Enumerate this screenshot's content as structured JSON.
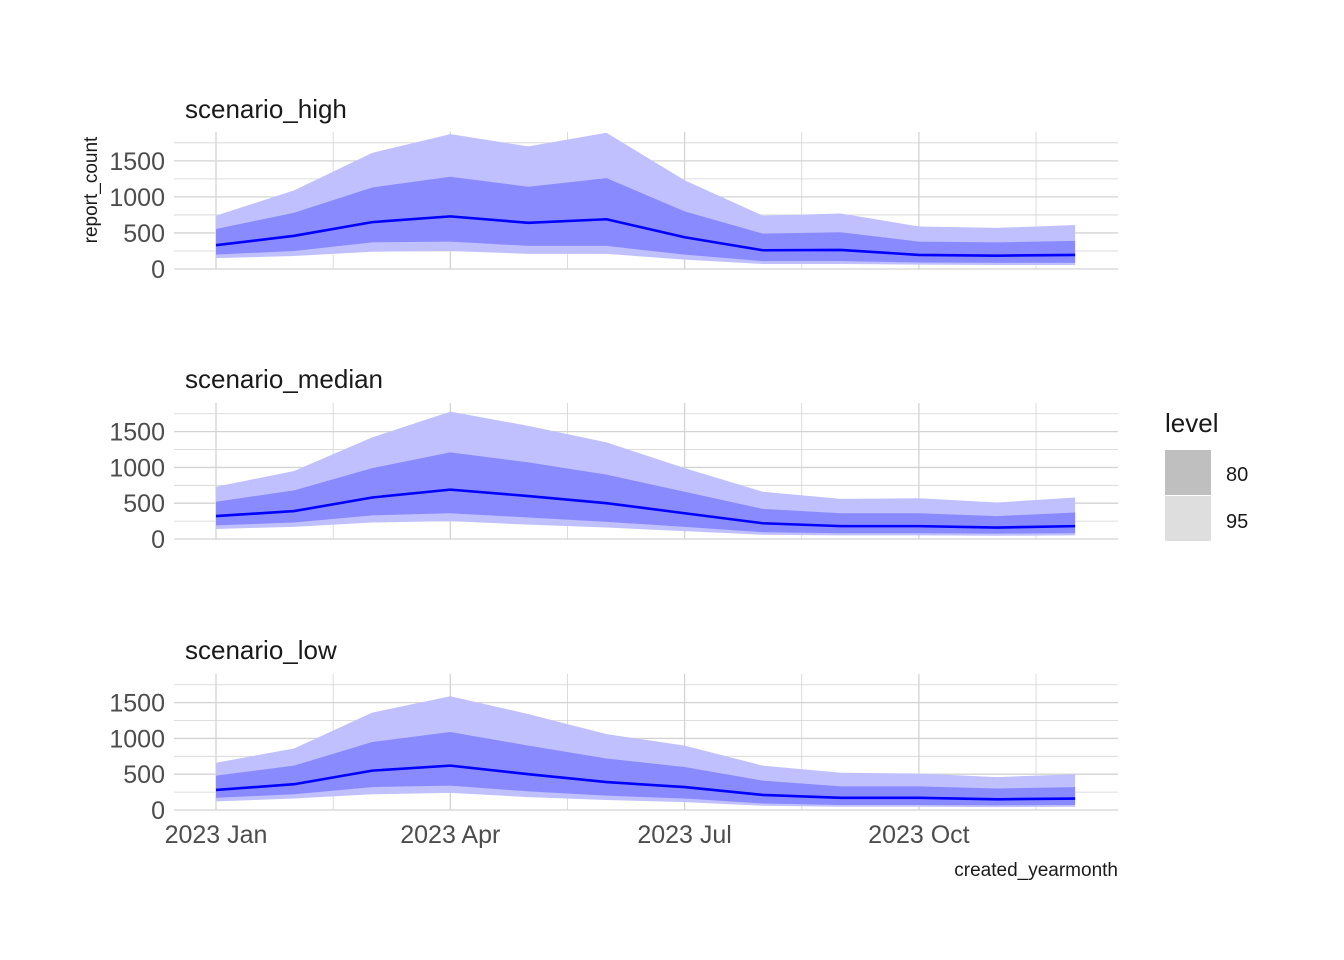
{
  "chart_data": {
    "type": "area",
    "xlabel": "created_yearmonth",
    "ylabel": "report_count",
    "x": [
      "2023-01",
      "2023-02",
      "2023-03",
      "2023-04",
      "2023-05",
      "2023-06",
      "2023-07",
      "2023-08",
      "2023-09",
      "2023-10",
      "2023-11",
      "2023-12"
    ],
    "x_ticks": [
      "2023 Jan",
      "2023 Apr",
      "2023 Jul",
      "2023 Oct"
    ],
    "x_tick_months": [
      "2023-01",
      "2023-04",
      "2023-07",
      "2023-10"
    ],
    "y_ticks": [
      0,
      500,
      1000,
      1500
    ],
    "ylim": [
      0,
      1900
    ],
    "grid": true,
    "colors": {
      "line": "#0000ff",
      "band80": "#8a8aff",
      "band95": "#c0c0ff",
      "grid": "#d3d3d3",
      "legend80": "#bfbfbf",
      "legend95": "#dedede"
    },
    "legend": {
      "title": "level",
      "position": "right",
      "items": [
        {
          "label": "80",
          "color": "#bfbfbf"
        },
        {
          "label": "95",
          "color": "#dedede"
        }
      ]
    },
    "facets": [
      {
        "title": "scenario_high",
        "mean": [
          330,
          460,
          650,
          730,
          640,
          690,
          440,
          260,
          265,
          195,
          185,
          195
        ],
        "lo80": [
          200,
          250,
          370,
          380,
          320,
          320,
          200,
          110,
          110,
          90,
          85,
          85
        ],
        "hi80": [
          555,
          780,
          1130,
          1280,
          1140,
          1260,
          800,
          490,
          510,
          380,
          370,
          390
        ],
        "lo95": [
          150,
          180,
          240,
          250,
          210,
          210,
          130,
          70,
          70,
          60,
          55,
          55
        ],
        "hi95": [
          740,
          1090,
          1610,
          1870,
          1700,
          1890,
          1230,
          740,
          770,
          590,
          570,
          610
        ]
      },
      {
        "title": "scenario_median",
        "mean": [
          320,
          390,
          580,
          690,
          600,
          500,
          360,
          220,
          180,
          180,
          160,
          180
        ],
        "lo80": [
          190,
          230,
          330,
          360,
          300,
          240,
          170,
          95,
          80,
          80,
          75,
          80
        ],
        "hi80": [
          520,
          680,
          990,
          1210,
          1070,
          900,
          660,
          420,
          360,
          360,
          320,
          370
        ],
        "lo95": [
          140,
          170,
          230,
          250,
          200,
          160,
          110,
          60,
          50,
          50,
          45,
          50
        ],
        "hi95": [
          730,
          950,
          1420,
          1780,
          1580,
          1350,
          990,
          660,
          560,
          570,
          510,
          580
        ]
      },
      {
        "title": "scenario_low",
        "mean": [
          280,
          360,
          550,
          620,
          500,
          390,
          320,
          210,
          170,
          170,
          150,
          160
        ],
        "lo80": [
          170,
          220,
          320,
          340,
          260,
          200,
          160,
          90,
          70,
          70,
          65,
          70
        ],
        "hi80": [
          480,
          620,
          950,
          1090,
          900,
          720,
          600,
          410,
          330,
          330,
          300,
          320
        ],
        "lo95": [
          120,
          160,
          220,
          240,
          180,
          140,
          110,
          60,
          45,
          45,
          40,
          45
        ],
        "hi95": [
          660,
          860,
          1360,
          1590,
          1340,
          1060,
          900,
          620,
          520,
          510,
          460,
          500
        ]
      }
    ]
  }
}
